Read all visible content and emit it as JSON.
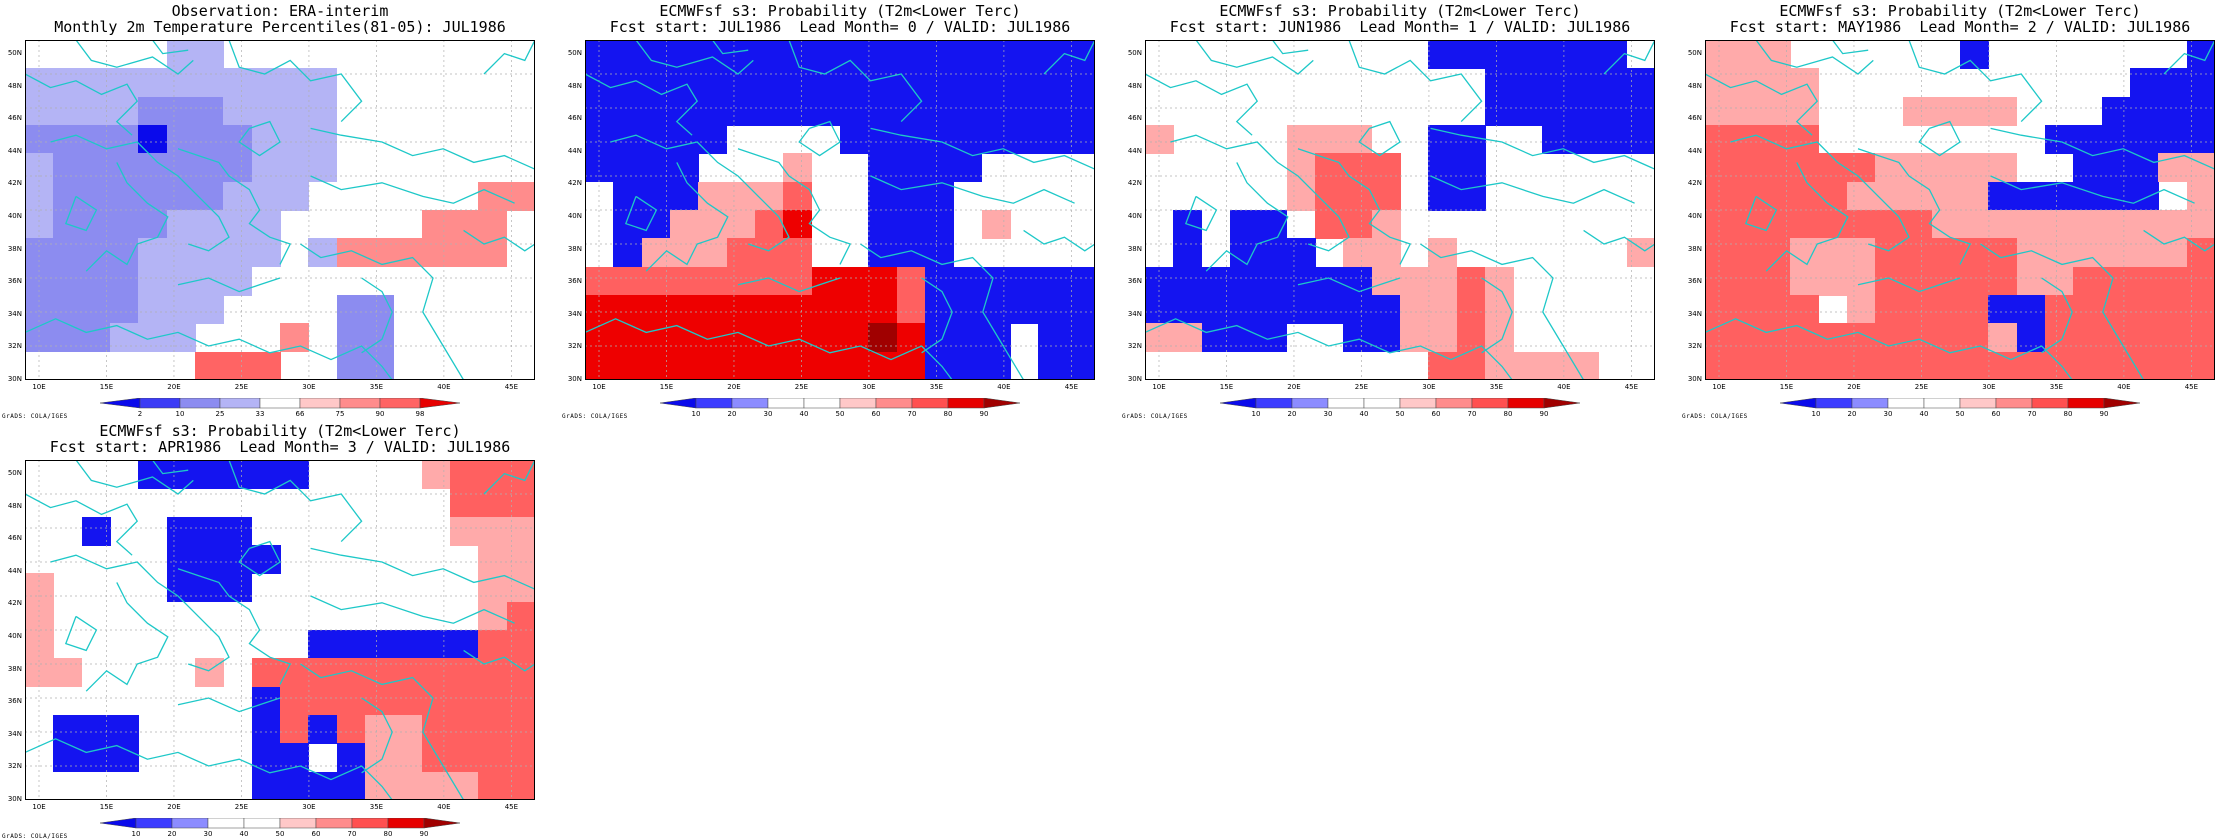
{
  "panels": [
    {
      "id": "obs",
      "title_line1": "Observation: ERA-interim",
      "title_line2": "Monthly 2m Temperature Percentiles(81-05): JUL1986",
      "colorbar": {
        "labels": [
          "2",
          "10",
          "25",
          "33",
          "66",
          "75",
          "90",
          "98"
        ]
      },
      "credit": "GrADS: COLA/IGES",
      "grid": [
        [
          0,
          0,
          0,
          0,
          0,
          1,
          1,
          0,
          0,
          0,
          0,
          0,
          0,
          0,
          0,
          0,
          0,
          0
        ],
        [
          1,
          1,
          1,
          1,
          1,
          1,
          1,
          1,
          1,
          1,
          1,
          0,
          0,
          0,
          0,
          0,
          0,
          0
        ],
        [
          1,
          1,
          1,
          1,
          2,
          2,
          2,
          1,
          1,
          1,
          1,
          0,
          0,
          0,
          0,
          0,
          0,
          0
        ],
        [
          2,
          2,
          2,
          2,
          3,
          2,
          2,
          2,
          1,
          1,
          1,
          0,
          0,
          0,
          0,
          0,
          0,
          0
        ],
        [
          1,
          2,
          2,
          2,
          2,
          2,
          2,
          2,
          1,
          1,
          1,
          0,
          0,
          0,
          0,
          0,
          0,
          0
        ],
        [
          1,
          2,
          2,
          2,
          2,
          2,
          2,
          1,
          1,
          1,
          0,
          0,
          0,
          0,
          0,
          0,
          5,
          5
        ],
        [
          1,
          2,
          2,
          2,
          2,
          1,
          1,
          1,
          1,
          0,
          0,
          0,
          0,
          0,
          5,
          5,
          5,
          0
        ],
        [
          2,
          2,
          2,
          2,
          1,
          1,
          1,
          1,
          1,
          0,
          1,
          5,
          5,
          5,
          5,
          5,
          5,
          0
        ],
        [
          2,
          2,
          2,
          2,
          1,
          1,
          1,
          1,
          0,
          0,
          0,
          0,
          0,
          0,
          0,
          0,
          0,
          0
        ],
        [
          2,
          2,
          2,
          2,
          1,
          1,
          1,
          0,
          0,
          0,
          0,
          2,
          2,
          0,
          0,
          0,
          0,
          0
        ],
        [
          2,
          2,
          2,
          1,
          1,
          1,
          0,
          0,
          0,
          5,
          0,
          2,
          2,
          0,
          0,
          0,
          0,
          0
        ],
        [
          0,
          0,
          0,
          0,
          0,
          0,
          6,
          6,
          6,
          0,
          0,
          2,
          2,
          0,
          0,
          0,
          0,
          0
        ]
      ]
    },
    {
      "id": "lead0",
      "title_line1": "ECMWFsf s3: Probability (T2m<Lower Terc)",
      "title_line2": "Fcst start: JUL1986  Lead Month= 0 / VALID: JUL1986",
      "colorbar": {
        "labels": [
          "10",
          "20",
          "30",
          "40",
          "50",
          "60",
          "70",
          "80",
          "90"
        ]
      },
      "credit": "GrADS: COLA/IGES",
      "grid": [
        [
          2,
          2,
          2,
          2,
          2,
          2,
          2,
          2,
          2,
          2,
          2,
          2,
          2,
          2,
          2,
          2,
          2,
          2
        ],
        [
          2,
          2,
          2,
          2,
          2,
          2,
          2,
          2,
          2,
          2,
          2,
          2,
          2,
          2,
          2,
          2,
          2,
          2
        ],
        [
          2,
          2,
          2,
          2,
          2,
          2,
          2,
          2,
          2,
          2,
          2,
          2,
          2,
          2,
          2,
          2,
          2,
          2
        ],
        [
          2,
          2,
          2,
          2,
          2,
          0,
          0,
          0,
          0,
          2,
          2,
          2,
          2,
          2,
          2,
          2,
          2,
          2
        ],
        [
          2,
          2,
          2,
          2,
          0,
          0,
          0,
          5,
          0,
          0,
          2,
          2,
          2,
          2,
          0,
          0,
          0,
          0
        ],
        [
          0,
          2,
          2,
          2,
          5,
          5,
          5,
          6,
          0,
          0,
          2,
          2,
          2,
          0,
          0,
          0,
          0,
          0
        ],
        [
          0,
          2,
          2,
          5,
          5,
          5,
          6,
          7,
          0,
          0,
          2,
          2,
          2,
          0,
          5,
          0,
          0,
          0
        ],
        [
          0,
          2,
          5,
          5,
          5,
          6,
          6,
          6,
          0,
          0,
          2,
          2,
          2,
          0,
          0,
          0,
          0,
          0
        ],
        [
          6,
          6,
          6,
          6,
          6,
          6,
          6,
          6,
          7,
          7,
          7,
          6,
          2,
          2,
          2,
          2,
          2,
          2
        ],
        [
          7,
          7,
          7,
          7,
          7,
          7,
          7,
          7,
          7,
          7,
          7,
          6,
          2,
          2,
          2,
          2,
          2,
          2
        ],
        [
          7,
          7,
          7,
          7,
          7,
          7,
          7,
          7,
          7,
          7,
          8,
          7,
          2,
          2,
          2,
          0,
          2,
          2
        ],
        [
          7,
          7,
          7,
          7,
          7,
          7,
          7,
          7,
          7,
          7,
          7,
          7,
          2,
          2,
          2,
          0,
          2,
          2
        ]
      ]
    },
    {
      "id": "lead1",
      "title_line1": "ECMWFsf s3: Probability (T2m<Lower Terc)",
      "title_line2": "Fcst start: JUN1986  Lead Month= 1 / VALID: JUL1986",
      "colorbar": {
        "labels": [
          "10",
          "20",
          "30",
          "40",
          "50",
          "60",
          "70",
          "80",
          "90"
        ]
      },
      "credit": "GrADS: COLA/IGES",
      "grid": [
        [
          0,
          0,
          0,
          0,
          0,
          0,
          0,
          0,
          0,
          0,
          2,
          2,
          2,
          2,
          2,
          2,
          2,
          0
        ],
        [
          0,
          0,
          0,
          0,
          0,
          0,
          0,
          0,
          0,
          0,
          0,
          0,
          2,
          2,
          2,
          2,
          2,
          2
        ],
        [
          0,
          0,
          0,
          0,
          0,
          0,
          0,
          0,
          0,
          0,
          0,
          0,
          2,
          2,
          2,
          2,
          2,
          2
        ],
        [
          5,
          0,
          0,
          0,
          0,
          5,
          5,
          5,
          0,
          0,
          2,
          2,
          0,
          0,
          2,
          2,
          2,
          2
        ],
        [
          0,
          0,
          0,
          0,
          0,
          5,
          6,
          6,
          6,
          0,
          2,
          2,
          0,
          0,
          0,
          0,
          0,
          0
        ],
        [
          0,
          0,
          0,
          0,
          0,
          5,
          6,
          6,
          6,
          0,
          2,
          2,
          0,
          0,
          0,
          0,
          0,
          0
        ],
        [
          0,
          2,
          0,
          2,
          2,
          0,
          6,
          6,
          5,
          0,
          0,
          0,
          0,
          0,
          0,
          0,
          0,
          0
        ],
        [
          0,
          2,
          0,
          2,
          2,
          2,
          0,
          5,
          5,
          0,
          5,
          0,
          0,
          0,
          0,
          0,
          0,
          5
        ],
        [
          2,
          2,
          2,
          2,
          2,
          2,
          2,
          2,
          5,
          5,
          5,
          6,
          5,
          0,
          0,
          0,
          0,
          0
        ],
        [
          2,
          2,
          2,
          2,
          2,
          2,
          2,
          2,
          2,
          5,
          5,
          6,
          5,
          0,
          0,
          0,
          0,
          0
        ],
        [
          5,
          5,
          2,
          2,
          2,
          0,
          0,
          2,
          2,
          5,
          5,
          6,
          5,
          0,
          0,
          0,
          0,
          0
        ],
        [
          0,
          0,
          0,
          0,
          0,
          0,
          0,
          0,
          0,
          0,
          6,
          6,
          5,
          5,
          5,
          5,
          0,
          0
        ]
      ]
    },
    {
      "id": "lead2",
      "title_line1": "ECMWFsf s3: Probability (T2m<Lower Terc)",
      "title_line2": "Fcst start: MAY1986  Lead Month= 2 / VALID: JUL1986",
      "colorbar": {
        "labels": [
          "10",
          "20",
          "30",
          "40",
          "50",
          "60",
          "70",
          "80",
          "90"
        ]
      },
      "credit": "GrADS: COLA/IGES",
      "grid": [
        [
          5,
          5,
          5,
          0,
          0,
          0,
          0,
          0,
          0,
          2,
          0,
          0,
          0,
          0,
          0,
          0,
          0,
          2
        ],
        [
          5,
          5,
          5,
          5,
          0,
          0,
          0,
          0,
          0,
          0,
          0,
          0,
          0,
          0,
          0,
          2,
          2,
          2
        ],
        [
          5,
          5,
          5,
          5,
          0,
          0,
          0,
          5,
          5,
          5,
          5,
          0,
          0,
          0,
          2,
          2,
          2,
          2
        ],
        [
          6,
          6,
          6,
          6,
          0,
          0,
          0,
          0,
          0,
          0,
          0,
          0,
          2,
          2,
          2,
          2,
          2,
          2
        ],
        [
          6,
          6,
          6,
          6,
          6,
          6,
          5,
          5,
          5,
          5,
          5,
          0,
          0,
          2,
          2,
          2,
          5,
          5
        ],
        [
          6,
          6,
          6,
          6,
          6,
          5,
          5,
          5,
          5,
          5,
          2,
          2,
          2,
          2,
          2,
          2,
          0,
          5
        ],
        [
          6,
          6,
          6,
          6,
          6,
          6,
          6,
          6,
          5,
          5,
          5,
          5,
          5,
          5,
          5,
          5,
          5,
          5
        ],
        [
          6,
          6,
          6,
          5,
          5,
          5,
          6,
          6,
          6,
          6,
          6,
          5,
          5,
          5,
          5,
          5,
          5,
          6
        ],
        [
          6,
          6,
          6,
          5,
          5,
          5,
          6,
          6,
          6,
          6,
          6,
          5,
          5,
          6,
          6,
          6,
          6,
          6
        ],
        [
          6,
          6,
          6,
          6,
          0,
          5,
          6,
          6,
          6,
          6,
          2,
          2,
          6,
          6,
          6,
          6,
          6,
          6
        ],
        [
          6,
          6,
          6,
          6,
          6,
          6,
          6,
          6,
          6,
          6,
          5,
          2,
          6,
          6,
          6,
          6,
          6,
          6
        ],
        [
          6,
          6,
          6,
          6,
          6,
          6,
          6,
          6,
          6,
          6,
          6,
          6,
          6,
          6,
          6,
          6,
          6,
          6
        ]
      ]
    },
    {
      "id": "lead3",
      "title_line1": "ECMWFsf s3: Probability (T2m<Lower Terc)",
      "title_line2": "Fcst start: APR1986  Lead Month= 3 / VALID: JUL1986",
      "colorbar": {
        "labels": [
          "10",
          "20",
          "30",
          "40",
          "50",
          "60",
          "70",
          "80",
          "90"
        ]
      },
      "credit": "GrADS: COLA/IGES",
      "grid": [
        [
          0,
          0,
          0,
          0,
          2,
          2,
          2,
          2,
          2,
          2,
          0,
          0,
          0,
          0,
          5,
          6,
          6,
          6
        ],
        [
          0,
          0,
          0,
          0,
          0,
          0,
          0,
          0,
          0,
          0,
          0,
          0,
          0,
          0,
          0,
          6,
          6,
          6
        ],
        [
          0,
          0,
          2,
          0,
          0,
          2,
          2,
          2,
          0,
          0,
          0,
          0,
          0,
          0,
          0,
          5,
          5,
          5
        ],
        [
          0,
          0,
          0,
          0,
          0,
          2,
          2,
          2,
          2,
          0,
          0,
          0,
          0,
          0,
          0,
          0,
          5,
          5
        ],
        [
          5,
          0,
          0,
          0,
          0,
          2,
          2,
          2,
          0,
          0,
          0,
          0,
          0,
          0,
          0,
          0,
          5,
          5
        ],
        [
          5,
          0,
          0,
          0,
          0,
          0,
          0,
          0,
          0,
          0,
          0,
          0,
          0,
          0,
          0,
          0,
          5,
          6
        ],
        [
          5,
          0,
          0,
          0,
          0,
          0,
          0,
          0,
          0,
          0,
          2,
          2,
          2,
          2,
          2,
          2,
          6,
          6
        ],
        [
          5,
          5,
          0,
          0,
          0,
          0,
          5,
          0,
          6,
          6,
          6,
          6,
          6,
          6,
          6,
          6,
          6,
          6
        ],
        [
          0,
          0,
          0,
          0,
          0,
          0,
          0,
          0,
          2,
          6,
          6,
          6,
          6,
          6,
          6,
          6,
          6,
          6
        ],
        [
          0,
          2,
          2,
          2,
          0,
          0,
          0,
          0,
          2,
          6,
          2,
          6,
          5,
          5,
          6,
          6,
          6,
          6
        ],
        [
          0,
          2,
          2,
          2,
          0,
          0,
          0,
          0,
          2,
          2,
          0,
          2,
          5,
          5,
          6,
          6,
          6,
          6
        ],
        [
          0,
          0,
          0,
          0,
          0,
          0,
          0,
          0,
          2,
          2,
          2,
          2,
          5,
          5,
          5,
          5,
          6,
          6
        ]
      ]
    }
  ],
  "palette": {
    "obs": [
      "#ffffff",
      "#b4b4f5",
      "#8c8cf0",
      "#0a0aeb",
      "#ffffff",
      "#ff8c8c",
      "#ff6464"
    ],
    "prob": [
      "#ffffff",
      "#3c3cff",
      "#1414f0",
      "#ffffff",
      "#ffffff",
      "#ffaaaa",
      "#ff6060",
      "#ee0000",
      "#a00000"
    ]
  },
  "lat_labels": [
    "50N",
    "48N",
    "46N",
    "44N",
    "42N",
    "40N",
    "38N",
    "36N",
    "34N",
    "32N",
    "30N"
  ],
  "lon_labels": [
    "10E",
    "15E",
    "20E",
    "25E",
    "30E",
    "35E",
    "40E",
    "45E"
  ],
  "coast_color": "#1ec8c8"
}
